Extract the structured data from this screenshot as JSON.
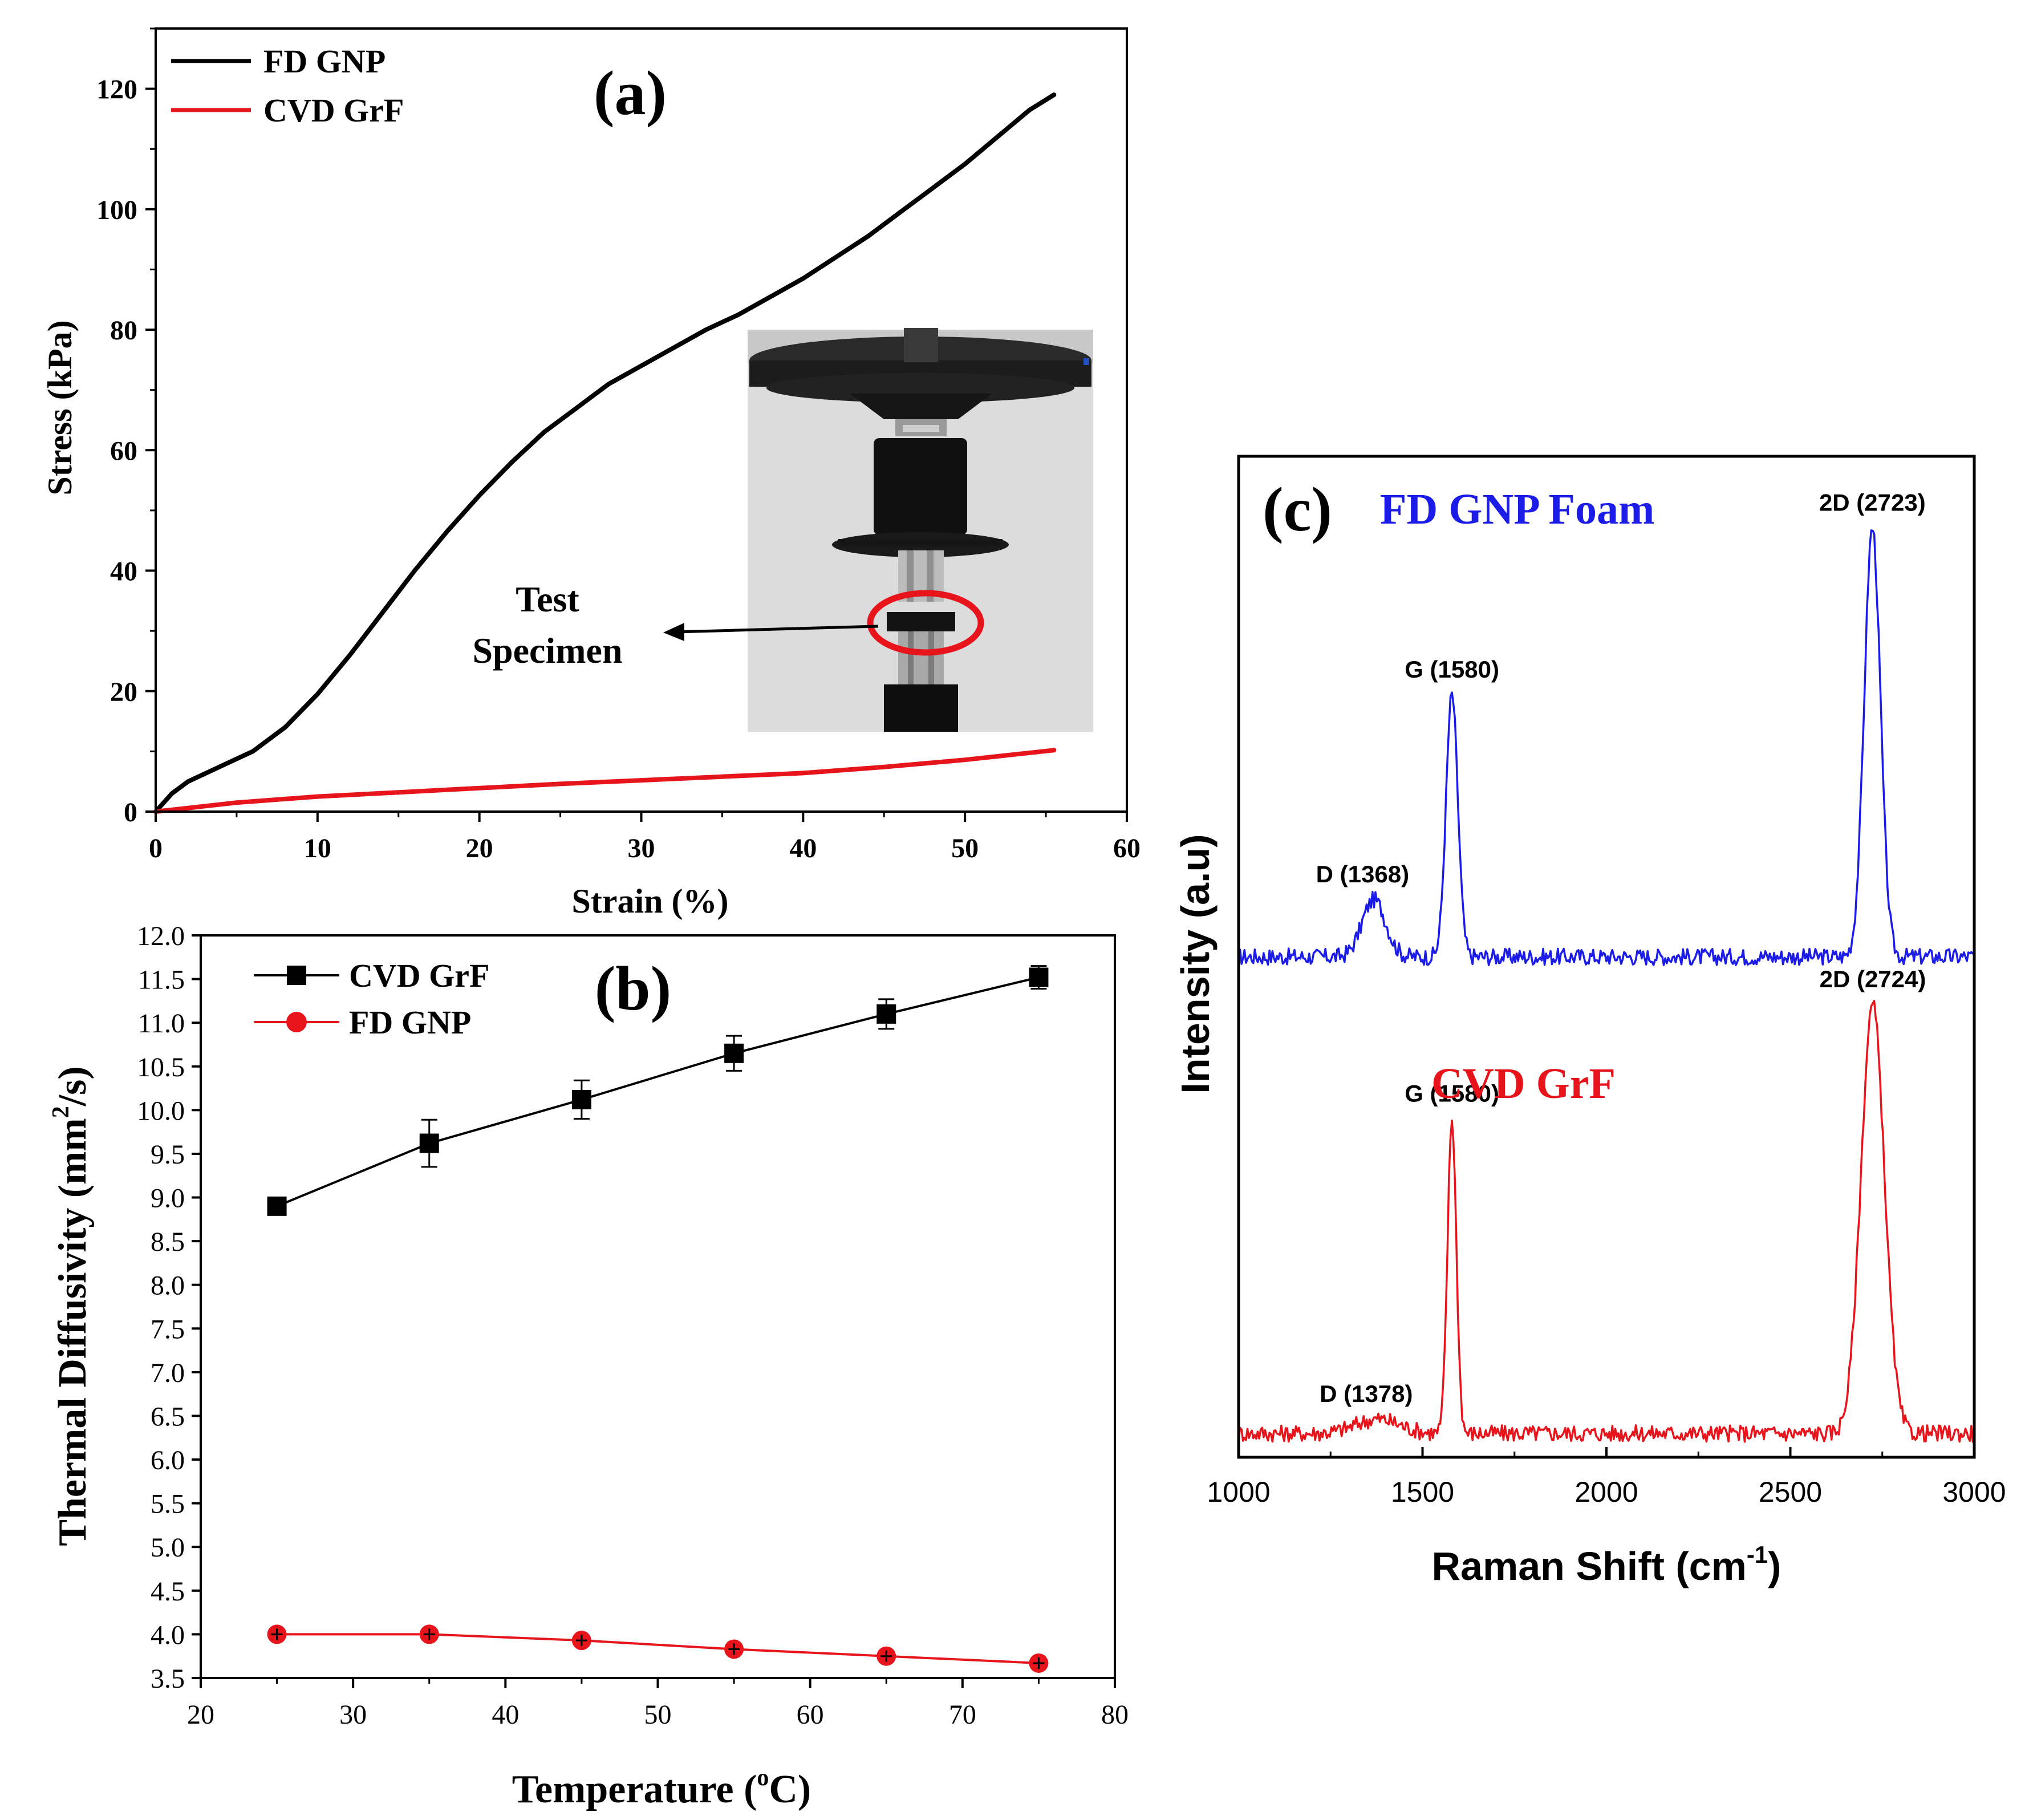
{
  "chart_data": [
    {
      "panel": "(a)",
      "type": "line",
      "title": "",
      "xlabel": "Strain (%)",
      "ylabel": "Stress (kPa)",
      "xlim": [
        0,
        60
      ],
      "ylim": [
        0,
        130
      ],
      "xticks": [
        0,
        10,
        20,
        30,
        40,
        50,
        60
      ],
      "yticks": [
        0,
        20,
        40,
        60,
        80,
        100,
        120
      ],
      "grid": false,
      "legend_position": "top-left",
      "colors": {
        "FD GNP": "#000000",
        "CVD GrF": "#e8141c"
      },
      "series": [
        {
          "name": "FD GNP",
          "x": [
            0,
            1,
            2,
            4,
            6,
            8,
            10,
            12,
            14,
            16,
            18,
            20,
            22,
            24,
            26,
            28,
            30,
            32,
            34,
            36,
            38,
            40,
            42,
            44,
            46,
            48,
            50,
            52,
            54,
            55.5
          ],
          "y": [
            0,
            3,
            5,
            7.5,
            10,
            14,
            19.5,
            26,
            33,
            40,
            46.5,
            52.5,
            58,
            63,
            67,
            71,
            74,
            77,
            80,
            82.5,
            85.5,
            88.5,
            92,
            95.5,
            99.5,
            103.5,
            107.5,
            112,
            116.5,
            119
          ]
        },
        {
          "name": "CVD GrF",
          "x": [
            0,
            5,
            10,
            15,
            20,
            25,
            30,
            35,
            40,
            45,
            50,
            55.5
          ],
          "y": [
            0,
            1.5,
            2.5,
            3.2,
            3.9,
            4.6,
            5.2,
            5.8,
            6.4,
            7.4,
            8.6,
            10.2
          ]
        }
      ],
      "annotation": {
        "line1": "Test",
        "line2": "Specimen"
      },
      "inset": "photo-of-test-fixture"
    },
    {
      "panel": "(b)",
      "type": "line",
      "title": "",
      "xlabel": "Temperature (",
      "xlabel_sup": "o",
      "xlabel_end": "C)",
      "ylabel": "Thermal Diffusivity (mm",
      "ylabel_sup": "2",
      "ylabel_end": "/s)",
      "xlim": [
        20,
        80
      ],
      "ylim": [
        3.5,
        12.0
      ],
      "xticks": [
        20,
        30,
        40,
        50,
        60,
        70,
        80
      ],
      "yticks": [
        "3.5",
        "4.0",
        "4.5",
        "5.0",
        "5.5",
        "6.0",
        "6.5",
        "7.0",
        "7.5",
        "8.0",
        "8.5",
        "9.0",
        "9.5",
        "10.0",
        "10.5",
        "11.0",
        "11.5",
        "12.0"
      ],
      "grid": false,
      "legend_position": "top-left",
      "colors": {
        "CVD GrF": "#000000",
        "FD GNP": "#e8141c"
      },
      "series": [
        {
          "name": "CVD GrF",
          "marker": "square",
          "x": [
            25,
            35,
            45,
            55,
            65,
            75
          ],
          "y": [
            8.9,
            9.62,
            10.12,
            10.65,
            11.1,
            11.52
          ],
          "err": [
            0.05,
            0.27,
            0.22,
            0.2,
            0.17,
            0.13
          ]
        },
        {
          "name": "FD GNP",
          "marker": "circle",
          "x": [
            25,
            35,
            45,
            55,
            65,
            75
          ],
          "y": [
            4.0,
            4.0,
            3.93,
            3.83,
            3.75,
            3.67
          ],
          "err": [
            0.03,
            0.03,
            0.03,
            0.03,
            0.03,
            0.03
          ]
        }
      ]
    },
    {
      "panel": "(c)",
      "type": "line",
      "title": "",
      "xlabel": "Raman Shift (cm",
      "xlabel_sup": "-1",
      "xlabel_end": ")",
      "ylabel": "Intensity (a.u)",
      "xlim": [
        1000,
        3000
      ],
      "xticks": [
        1000,
        1500,
        2000,
        2500,
        3000
      ],
      "yticks": [],
      "grid": false,
      "colors": {
        "FD GNP Foam": "#1c1ce8",
        "CVD GrF": "#e8141c"
      },
      "series": [
        {
          "name": "FD GNP Foam",
          "offset": 1.0,
          "peaks": [
            {
              "center": 1368,
              "height": 0.12,
              "width": 32
            },
            {
              "center": 1580,
              "height": 0.55,
              "width": 16
            },
            {
              "center": 2723,
              "height": 0.9,
              "width": 22
            }
          ],
          "peak_labels": [
            "D (1368)",
            "G (1580)",
            "2D (2723)"
          ]
        },
        {
          "name": "CVD GrF",
          "offset": 0.0,
          "peaks": [
            {
              "center": 1378,
              "height": 0.03,
              "width": 60
            },
            {
              "center": 1580,
              "height": 0.66,
              "width": 12
            },
            {
              "center": 2724,
              "height": 0.9,
              "width": 32
            }
          ],
          "peak_labels": [
            "D (1378)",
            "G (1580)",
            "2D (2724)"
          ]
        }
      ]
    }
  ]
}
